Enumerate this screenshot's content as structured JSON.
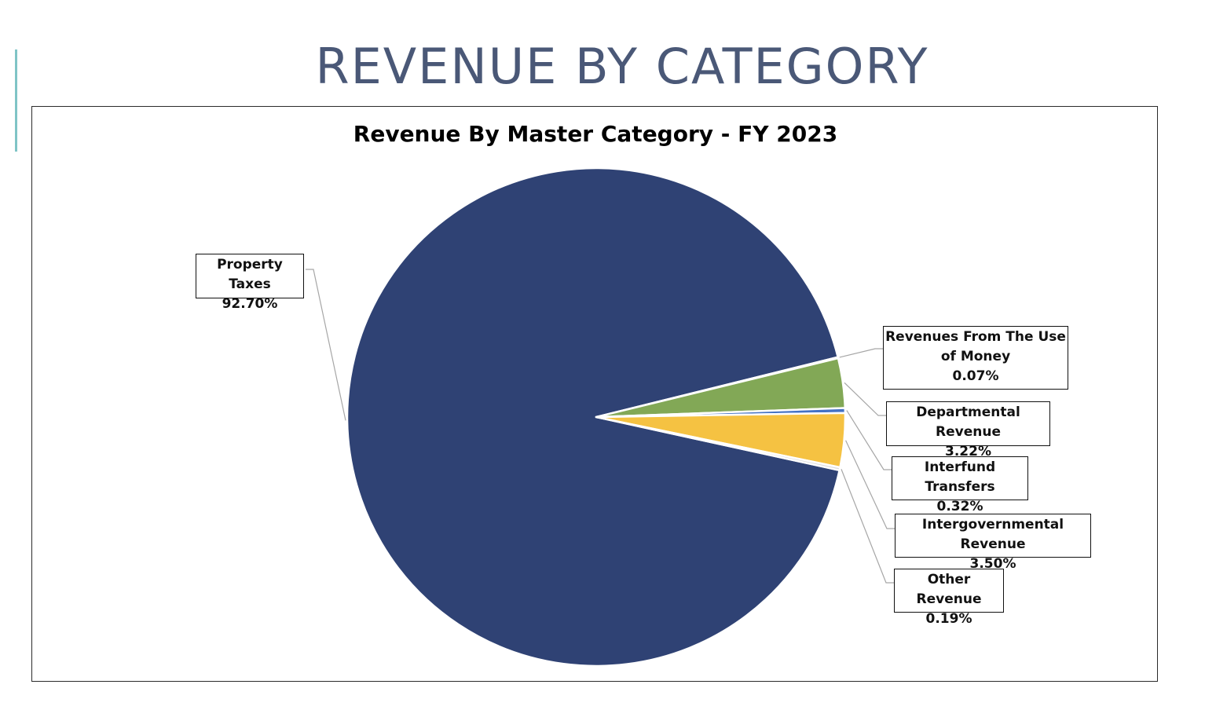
{
  "slide": {
    "title": "REVENUE BY CATEGORY"
  },
  "chart_data": {
    "type": "pie",
    "title": "Revenue By Master Category - FY 2023",
    "slices": [
      {
        "name": "Property Taxes",
        "value": 92.7,
        "label": "92.70%",
        "color": "#2f4274"
      },
      {
        "name": "Revenues From The Use of Money",
        "value": 0.07,
        "label": "0.07%",
        "color": "#8a8a8a"
      },
      {
        "name": "Departmental Revenue",
        "value": 3.22,
        "label": "3.22%",
        "color": "#82a856"
      },
      {
        "name": "Interfund Transfers",
        "value": 0.32,
        "label": "0.32%",
        "color": "#4472c4"
      },
      {
        "name": "Intergovernmental Revenue",
        "value": 3.5,
        "label": "3.50%",
        "color": "#f5c242"
      },
      {
        "name": "Other Revenue",
        "value": 0.19,
        "label": "0.19%",
        "color": "#d9d9d9"
      }
    ]
  }
}
